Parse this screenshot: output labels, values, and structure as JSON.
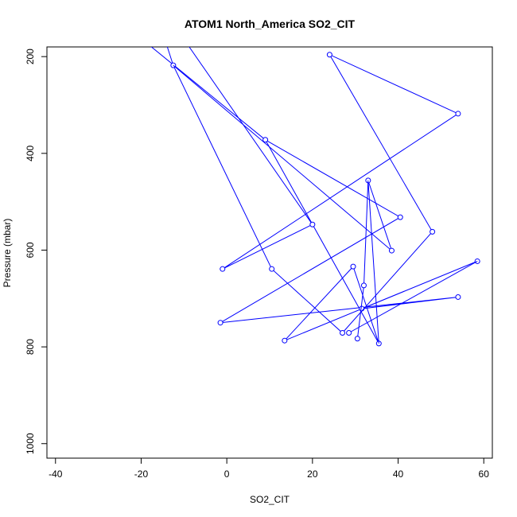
{
  "chart_data": {
    "type": "line",
    "title": "ATOM1 North_America SO2_CIT",
    "xlabel": "SO2_CIT",
    "ylabel": "Pressure (mbar)",
    "xlim": [
      -42,
      62
    ],
    "ylim": [
      1030,
      180
    ],
    "y_inverted": true,
    "xticks": [
      -40,
      -20,
      0,
      20,
      40,
      60
    ],
    "yticks": [
      200,
      400,
      600,
      800,
      1000
    ],
    "grid": false,
    "series": [
      {
        "color": "#0000ff",
        "marker": "open-circle",
        "points": [
          {
            "x": -18,
            "y": 177,
            "marker": false
          },
          {
            "x": 9,
            "y": 372
          },
          {
            "x": 40.5,
            "y": 532
          },
          {
            "x": -1.5,
            "y": 750
          },
          {
            "x": 54,
            "y": 697
          },
          {
            "x": 31.5,
            "y": 721
          },
          {
            "x": 58.5,
            "y": 623
          },
          {
            "x": 13.5,
            "y": 787
          },
          {
            "x": 29.5,
            "y": 634
          },
          {
            "x": 35.5,
            "y": 793
          },
          {
            "x": 9,
            "y": 372,
            "marker": false
          }
        ]
      },
      {
        "color": "#0000ff",
        "marker": "open-circle",
        "points": [
          {
            "x": -14,
            "y": 177,
            "marker": false
          },
          {
            "x": -12.5,
            "y": 218
          },
          {
            "x": 10.5,
            "y": 639
          },
          {
            "x": 27,
            "y": 771
          },
          {
            "x": 48,
            "y": 562
          },
          {
            "x": 24,
            "y": 196
          },
          {
            "x": 54,
            "y": 318
          },
          {
            "x": -1,
            "y": 639
          },
          {
            "x": 20,
            "y": 547
          },
          {
            "x": -9,
            "y": 177,
            "marker": false
          }
        ]
      },
      {
        "color": "#0000ff",
        "marker": "open-circle",
        "points": [
          {
            "x": -12.5,
            "y": 218,
            "marker": false
          },
          {
            "x": 38.5,
            "y": 601
          },
          {
            "x": 33,
            "y": 456
          },
          {
            "x": 35.5,
            "y": 793,
            "marker": false
          }
        ]
      },
      {
        "color": "#0000ff",
        "marker": "open-circle",
        "points": [
          {
            "x": 30.5,
            "y": 783
          },
          {
            "x": 32,
            "y": 673
          },
          {
            "x": 33,
            "y": 456,
            "marker": false
          }
        ]
      },
      {
        "color": "#0000ff",
        "marker": "open-circle",
        "points": [
          {
            "x": 28.5,
            "y": 771
          },
          {
            "x": 58.5,
            "y": 623,
            "marker": false
          }
        ]
      }
    ]
  }
}
